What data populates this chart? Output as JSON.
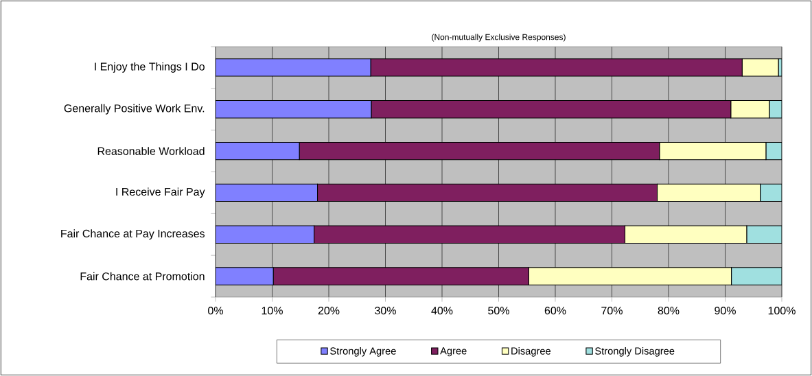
{
  "chart_data": {
    "type": "bar",
    "orientation": "horizontal",
    "stacked": true,
    "title": "(Non-mutually  Exclusive  Responses)",
    "categories": [
      "I Enjoy the Things I Do",
      "Generally Positive Work Env.",
      "Reasonable Workload",
      "I Receive Fair Pay",
      "Fair Chance at Pay Increases",
      "Fair Chance at Promotion"
    ],
    "series": [
      {
        "name": "Strongly Agree",
        "color": "#8080ff",
        "values": [
          27.4,
          27.5,
          14.8,
          18.0,
          17.4,
          10.2
        ]
      },
      {
        "name": "Agree",
        "color": "#7f1f5f",
        "values": [
          65.6,
          63.5,
          63.6,
          60.0,
          54.9,
          45.1
        ]
      },
      {
        "name": "Disagree",
        "color": "#ffffc0",
        "values": [
          6.4,
          6.8,
          18.8,
          18.2,
          21.5,
          35.8
        ]
      },
      {
        "name": "Strongly Disagree",
        "color": "#a0e0e0",
        "values": [
          0.6,
          2.2,
          2.8,
          3.8,
          6.2,
          8.9
        ]
      }
    ],
    "xlim": [
      0,
      100
    ],
    "xticks": [
      {
        "value": 0,
        "label": "0%"
      },
      {
        "value": 10,
        "label": "10%"
      },
      {
        "value": 20,
        "label": "20%"
      },
      {
        "value": 30,
        "label": "30%"
      },
      {
        "value": 40,
        "label": "40%"
      },
      {
        "value": 50,
        "label": "50%"
      },
      {
        "value": 60,
        "label": "60%"
      },
      {
        "value": 70,
        "label": "70%"
      },
      {
        "value": 80,
        "label": "80%"
      },
      {
        "value": 90,
        "label": "90%"
      },
      {
        "value": 100,
        "label": "100%"
      }
    ],
    "grid": "x",
    "legend": "bottom"
  }
}
